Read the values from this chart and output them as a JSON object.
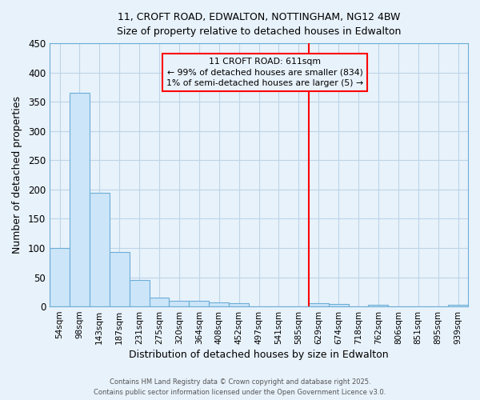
{
  "title1": "11, CROFT ROAD, EDWALTON, NOTTINGHAM, NG12 4BW",
  "title2": "Size of property relative to detached houses in Edwalton",
  "xlabel": "Distribution of detached houses by size in Edwalton",
  "ylabel": "Number of detached properties",
  "categories": [
    "54sqm",
    "98sqm",
    "143sqm",
    "187sqm",
    "231sqm",
    "275sqm",
    "320sqm",
    "364sqm",
    "408sqm",
    "452sqm",
    "497sqm",
    "541sqm",
    "585sqm",
    "629sqm",
    "674sqm",
    "718sqm",
    "762sqm",
    "806sqm",
    "851sqm",
    "895sqm",
    "939sqm"
  ],
  "values": [
    100,
    365,
    195,
    93,
    45,
    15,
    10,
    10,
    7,
    5,
    0,
    0,
    0,
    5,
    4,
    0,
    3,
    0,
    0,
    0,
    3
  ],
  "bar_color": "#cce5f8",
  "bar_edge_color": "#6baed6",
  "grid_color": "#bdd4e8",
  "background_color": "#e8f2fb",
  "ylim": [
    0,
    450
  ],
  "yticks": [
    0,
    50,
    100,
    150,
    200,
    250,
    300,
    350,
    400,
    450
  ],
  "red_line_index": 13,
  "annotation_line1": "11 CROFT ROAD: 611sqm",
  "annotation_line2": "← 99% of detached houses are smaller (834)",
  "annotation_line3": "1% of semi-detached houses are larger (5) →",
  "footer1": "Contains HM Land Registry data © Crown copyright and database right 2025.",
  "footer2": "Contains public sector information licensed under the Open Government Licence v3.0."
}
